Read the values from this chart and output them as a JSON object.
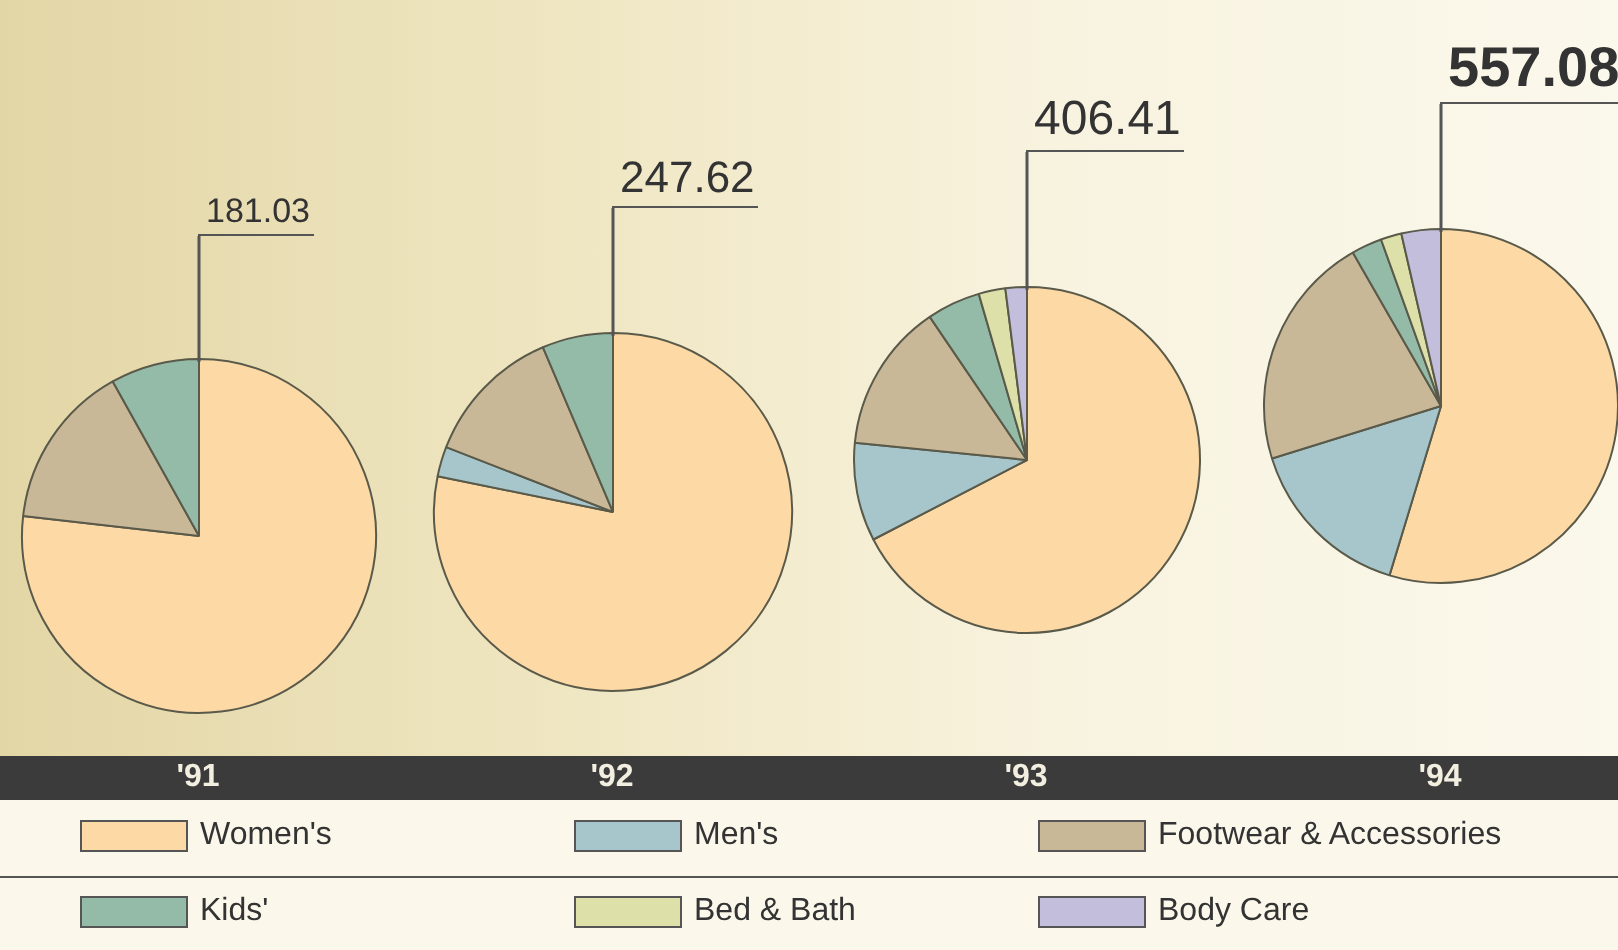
{
  "chart_data": [
    {
      "type": "pie",
      "title": "181.03",
      "subtitle": "'91",
      "legend": "bottom",
      "categories": [
        "Women's",
        "Men's",
        "Footwear & Accessories",
        "Kids'",
        "Bed & Bath",
        "Body Care"
      ],
      "colors": [
        "#fcd9a5",
        "#a7c6cc",
        "#c9b898",
        "#94bba8",
        "#dde0a8",
        "#c2bedb"
      ],
      "values": [
        76.8,
        0,
        15.1,
        8.1,
        0,
        0
      ]
    },
    {
      "type": "pie",
      "title": "247.62",
      "subtitle": "'92",
      "categories": [
        null,
        null,
        null,
        null,
        null,
        null
      ],
      "colors": [
        "#fcd9a5",
        "#a7c6cc",
        "#c9b898",
        "#94bba8",
        "#dde0a8",
        "#c2bedb"
      ],
      "values": [
        78.2,
        2.7,
        12.7,
        6.4,
        0,
        0
      ]
    },
    {
      "type": "pie",
      "title": "406.41",
      "subtitle": "'93",
      "categories": [
        null,
        null,
        null,
        null,
        null,
        null
      ],
      "colors": [
        "#fcd9a5",
        "#a7c6cc",
        "#c9b898",
        "#94bba8",
        "#dde0a8",
        "#c2bedb"
      ],
      "values": [
        67.4,
        9.2,
        13.9,
        5.0,
        2.5,
        2.0
      ]
    },
    {
      "type": "pie",
      "title": "557.08",
      "subtitle": "'94",
      "categories": [
        null,
        null,
        null,
        null,
        null,
        null
      ],
      "colors": [
        "#fcd9a5",
        "#a7c6cc",
        "#c9b898",
        "#94bba8",
        "#dde0a8",
        "#c2bedb"
      ],
      "values": [
        54.7,
        15.5,
        21.5,
        2.8,
        1.9,
        3.6
      ]
    }
  ]
}
